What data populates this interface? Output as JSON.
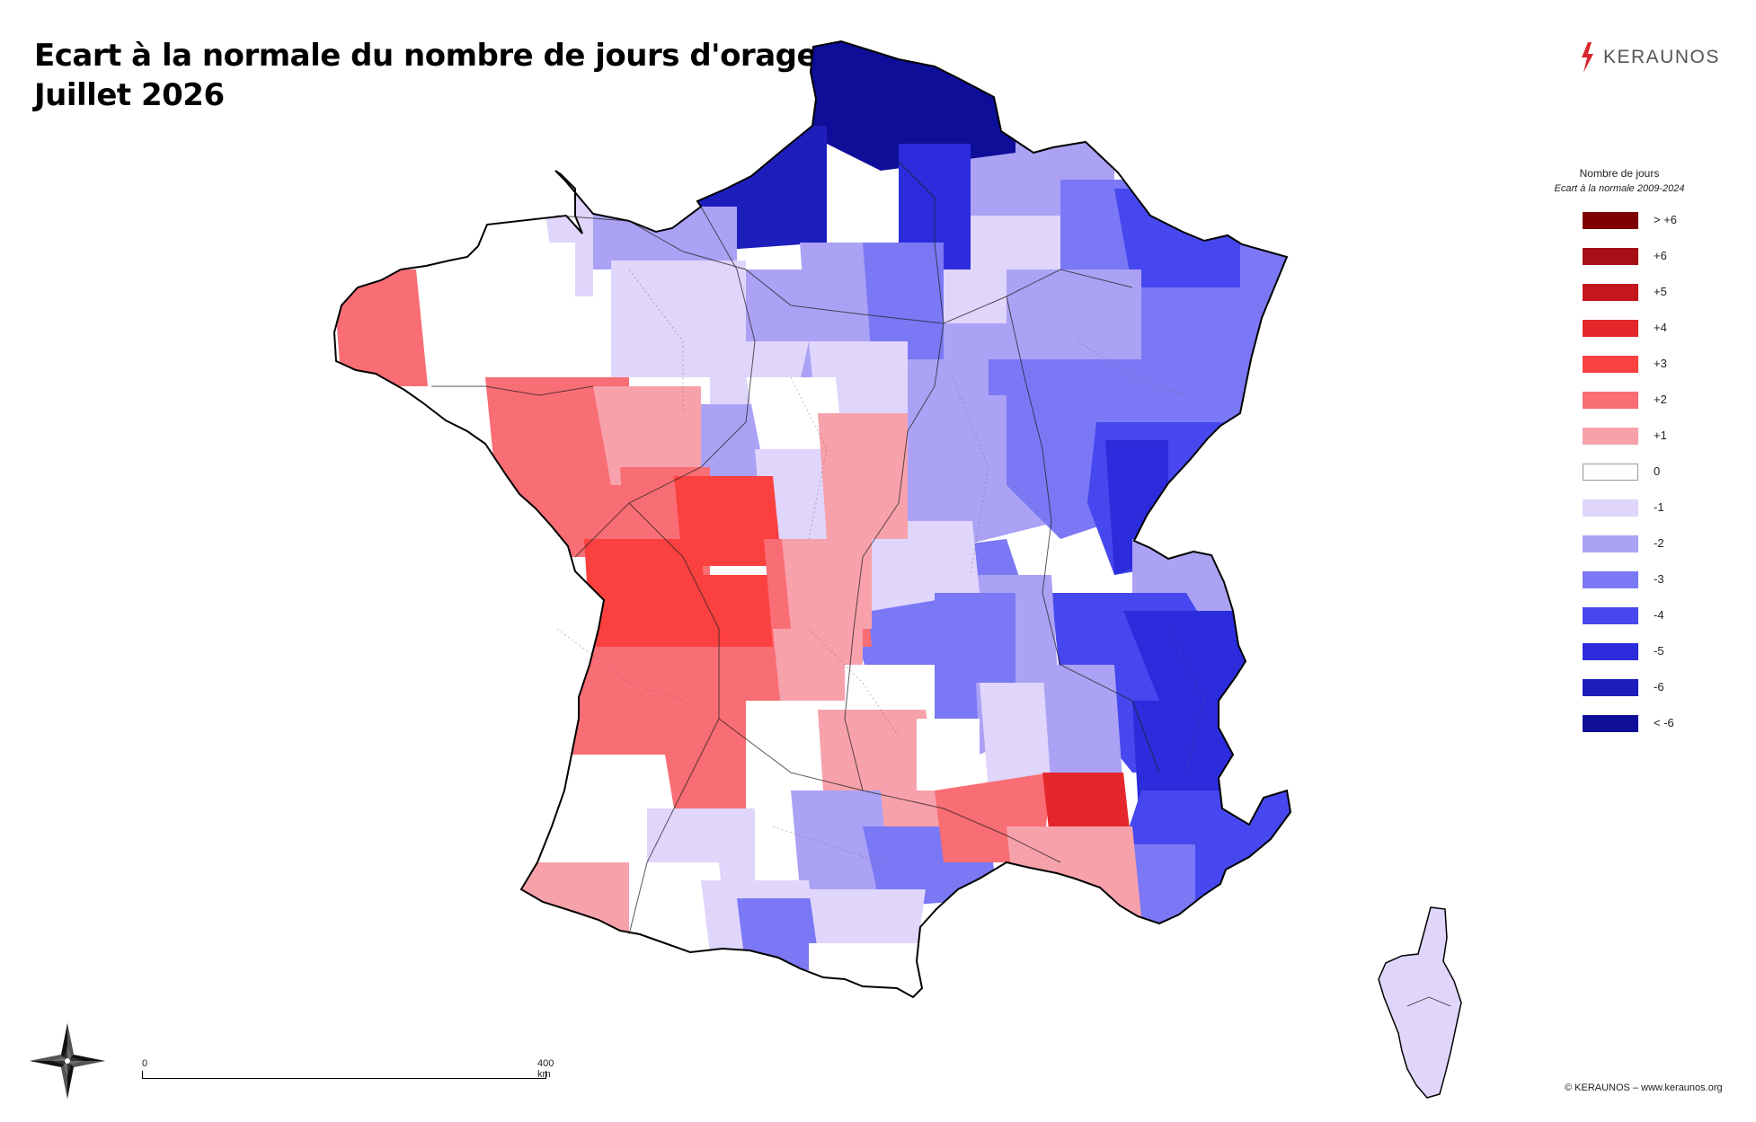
{
  "title": {
    "line1": "Ecart à la normale du nombre de jours d'orage",
    "line2": "Juillet 2026"
  },
  "brand": {
    "name": "KERAUNOS",
    "icon": "lightning-bolt-icon",
    "color": "#d7262e"
  },
  "legend": {
    "title": "Nombre de jours",
    "subtitle": "Ecart à la normale 2009-2024",
    "items": [
      {
        "label": "> +6",
        "color": "#7f0000"
      },
      {
        "label": "+6",
        "color": "#a50f15"
      },
      {
        "label": "+5",
        "color": "#c4161c"
      },
      {
        "label": "+4",
        "color": "#e3272b"
      },
      {
        "label": "+3",
        "color": "#fb4040"
      },
      {
        "label": "+2",
        "color": "#f96d74"
      },
      {
        "label": "+1",
        "color": "#f7a1ab"
      },
      {
        "label": "0",
        "color": "#ffffff"
      },
      {
        "label": "-1",
        "color": "#e0d5fb"
      },
      {
        "label": "-2",
        "color": "#aba2f5"
      },
      {
        "label": "-3",
        "color": "#7a78f4"
      },
      {
        "label": "-4",
        "color": "#4747f0"
      },
      {
        "label": "-5",
        "color": "#2c2cdc"
      },
      {
        "label": "-6",
        "color": "#1e1ebc"
      },
      {
        "label": "< -6",
        "color": "#0e0e98"
      }
    ]
  },
  "scale_bar": {
    "start_label": "0",
    "end_label": "400 km"
  },
  "compass": {
    "icon": "compass-rose-icon"
  },
  "copyright": "© KERAUNOS – www.keraunos.org"
}
